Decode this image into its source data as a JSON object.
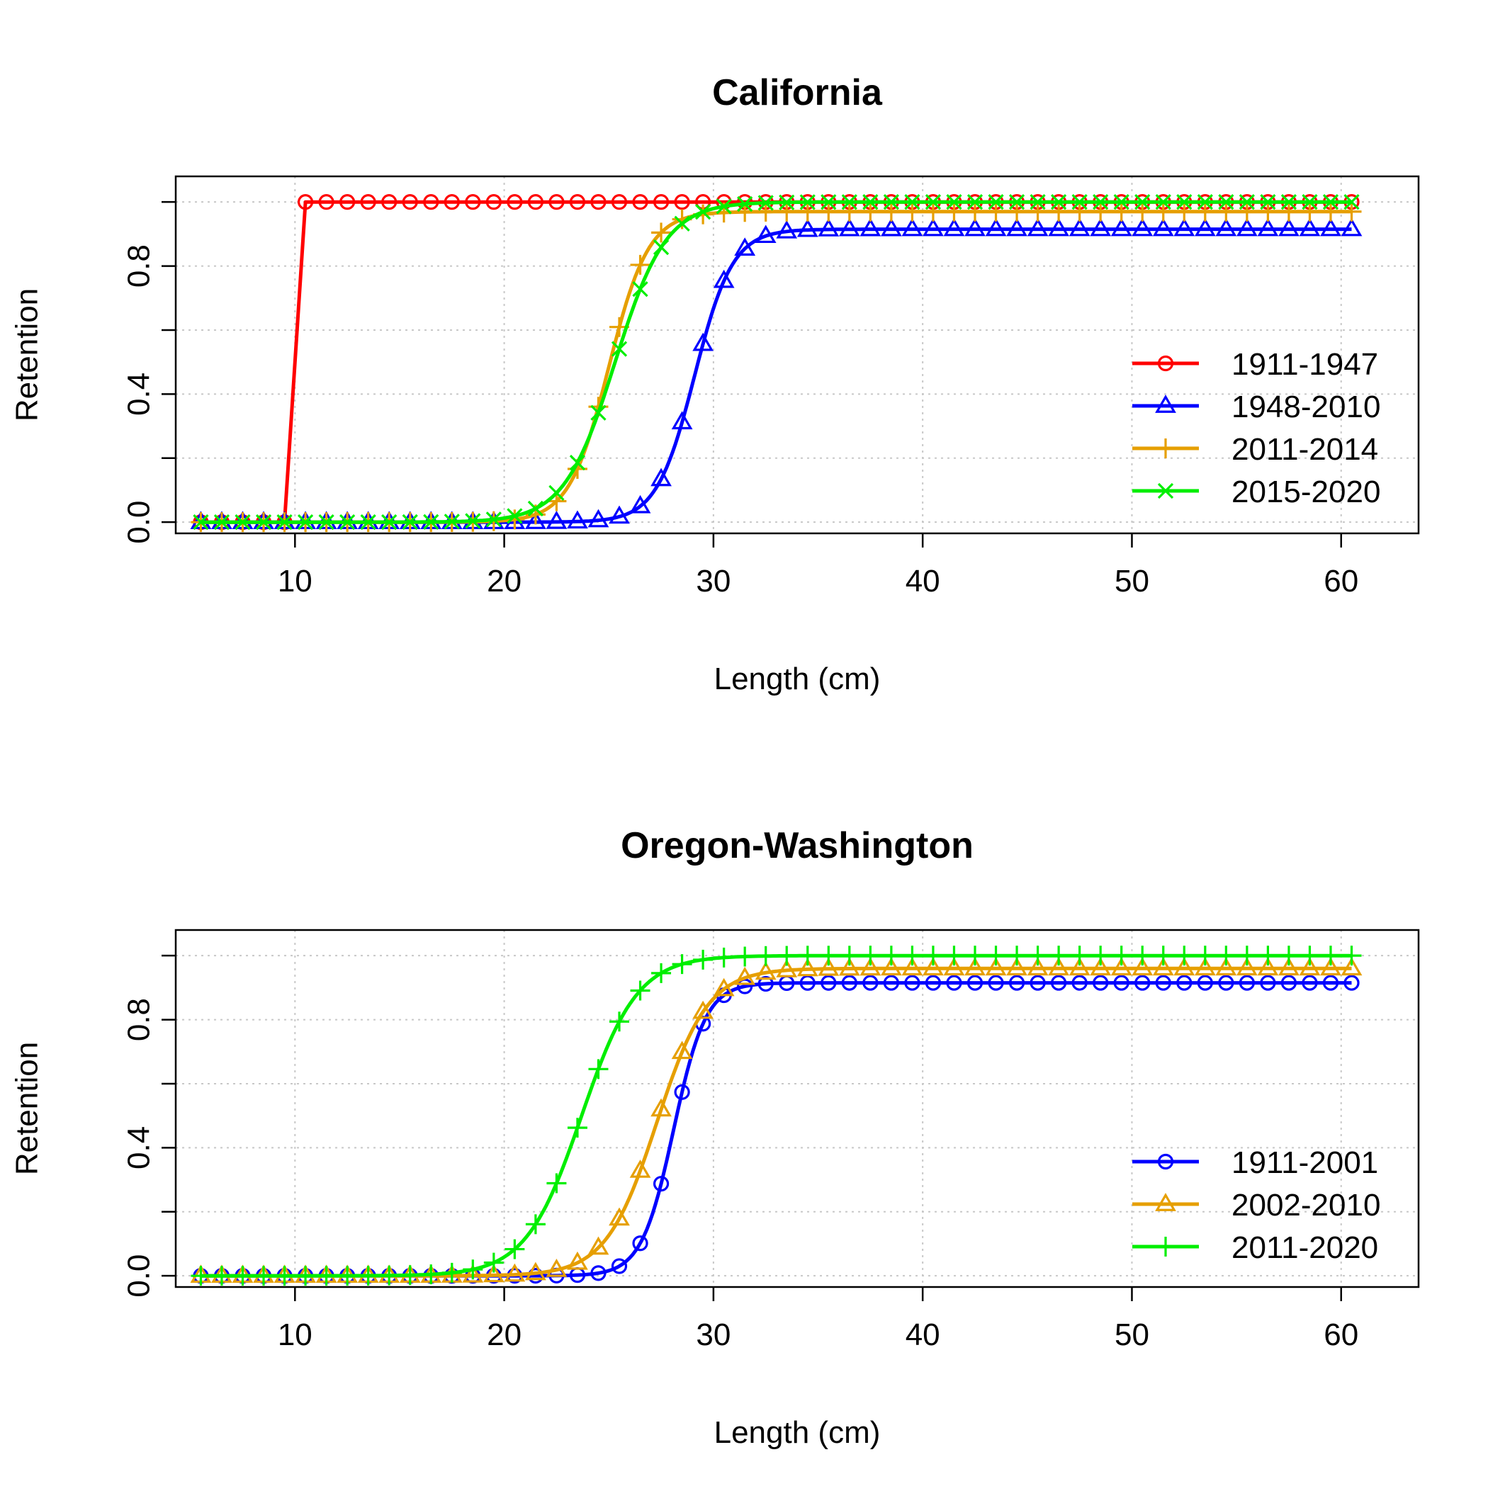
{
  "chart_data": [
    {
      "type": "line",
      "title": "California",
      "xlabel": "Length (cm)",
      "ylabel": "Retention",
      "xlim": [
        4.3,
        63.7
      ],
      "ylim": [
        -0.035,
        1.08
      ],
      "xticks": [
        10,
        20,
        30,
        40,
        50,
        60
      ],
      "yticks": [
        0.0,
        0.4,
        0.8
      ],
      "yticks_minor": [
        0.2,
        0.6,
        1.0
      ],
      "grid": true,
      "legend_position": "right",
      "x": {
        "start": 5.5,
        "step": 1,
        "count": 56
      },
      "series": [
        {
          "name": "1911-1947",
          "color": "#ff0000",
          "marker": "circle",
          "curve": "step",
          "threshold": 10,
          "asymptote": 1.0
        },
        {
          "name": "1948-2010",
          "color": "#0000ff",
          "marker": "triangle",
          "curve": "logistic",
          "inflection": 29.1,
          "slope": 1.1,
          "asymptote": 0.915
        },
        {
          "name": "2011-2014",
          "color": "#e69f00",
          "marker": "plus",
          "curve": "logistic",
          "inflection": 25.0,
          "slope": 1.05,
          "asymptote": 0.97
        },
        {
          "name": "2015-2020",
          "color": "#00ee00",
          "marker": "x",
          "curve": "logistic",
          "inflection": 25.3,
          "slope": 0.82,
          "asymptote": 1.0
        }
      ]
    },
    {
      "type": "line",
      "title": "Oregon-Washington",
      "xlabel": "Length (cm)",
      "ylabel": "Retention",
      "xlim": [
        4.3,
        63.7
      ],
      "ylim": [
        -0.035,
        1.08
      ],
      "xticks": [
        10,
        20,
        30,
        40,
        50,
        60
      ],
      "yticks": [
        0.0,
        0.4,
        0.8
      ],
      "yticks_minor": [
        0.2,
        0.6,
        1.0
      ],
      "grid": true,
      "legend_position": "right",
      "x": {
        "start": 5.5,
        "step": 1,
        "count": 56
      },
      "series": [
        {
          "name": "1911-2001",
          "color": "#0000ff",
          "marker": "circle",
          "curve": "logistic",
          "inflection": 28.1,
          "slope": 1.3,
          "asymptote": 0.915
        },
        {
          "name": "2002-2010",
          "color": "#e69f00",
          "marker": "triangle",
          "curve": "logistic",
          "inflection": 27.3,
          "slope": 0.82,
          "asymptote": 0.96
        },
        {
          "name": "2011-2020",
          "color": "#00ee00",
          "marker": "plus",
          "curve": "logistic",
          "inflection": 23.7,
          "slope": 0.75,
          "asymptote": 1.0
        }
      ]
    }
  ]
}
